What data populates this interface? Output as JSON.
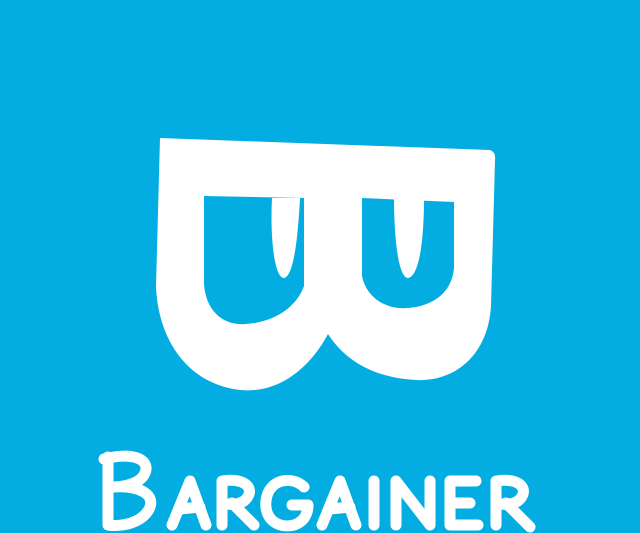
{
  "app": {
    "name": "Bargainer"
  },
  "colors": {
    "background": "#03ADE2",
    "logo": "#FFFFFF"
  },
  "icons": {
    "logo_mark": "bargainer-b-logo-icon"
  }
}
